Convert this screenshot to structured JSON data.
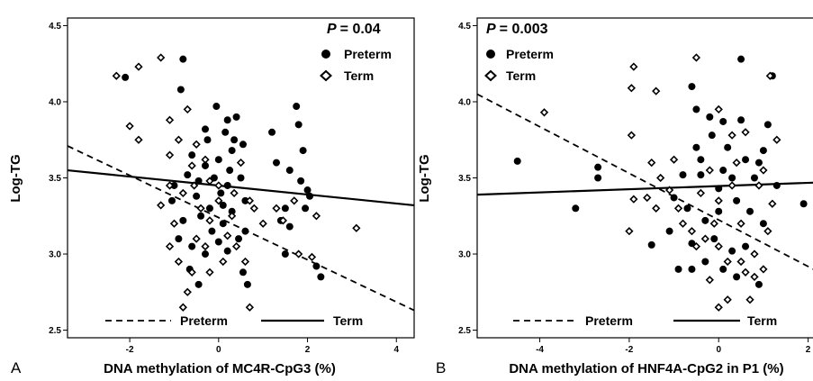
{
  "chart_data": [
    {
      "panel_label": "A",
      "type": "scatter",
      "xlabel": "DNA methylation of MC4R-CpG3 (%)",
      "ylabel": "Log-TG",
      "xlim": [
        -3.4,
        4.4
      ],
      "ylim": [
        2.45,
        4.55
      ],
      "x_ticks": [
        "-2",
        "0",
        "2",
        "4"
      ],
      "x_tick_values": [
        -2,
        0,
        2,
        4
      ],
      "y_ticks": [
        "2.5",
        "3.0",
        "3.5",
        "4.0",
        "4.5"
      ],
      "y_tick_values": [
        2.5,
        3.0,
        3.5,
        4.0,
        4.5
      ],
      "p_label": "P",
      "p_value": "= 0.04",
      "legend_top": "top-right",
      "legend_bottom": "bottom",
      "series": [
        {
          "name": "Preterm",
          "marker": "circle",
          "line": "dashed",
          "fit": [
            [
              -3.4,
              3.71
            ],
            [
              4.4,
              2.63
            ]
          ],
          "points": [
            [
              -2.1,
              4.16
            ],
            [
              -0.8,
              4.28
            ],
            [
              -0.85,
              4.08
            ],
            [
              -0.05,
              3.97
            ],
            [
              0.2,
              3.88
            ],
            [
              0.4,
              3.9
            ],
            [
              0.15,
              3.8
            ],
            [
              0.35,
              3.75
            ],
            [
              -0.3,
              3.82
            ],
            [
              0.55,
              3.72
            ],
            [
              -1.0,
              3.45
            ],
            [
              -1.05,
              3.35
            ],
            [
              -0.7,
              3.52
            ],
            [
              -0.5,
              3.38
            ],
            [
              -0.6,
              3.65
            ],
            [
              -0.3,
              3.58
            ],
            [
              0.0,
              3.62
            ],
            [
              0.3,
              3.68
            ],
            [
              0.5,
              3.5
            ],
            [
              0.2,
              3.45
            ],
            [
              0.05,
              3.4
            ],
            [
              -0.2,
              3.3
            ],
            [
              -0.4,
              3.25
            ],
            [
              0.1,
              3.2
            ],
            [
              0.3,
              3.28
            ],
            [
              0.6,
              3.35
            ],
            [
              -0.8,
              3.22
            ],
            [
              -0.9,
              3.1
            ],
            [
              -0.6,
              3.05
            ],
            [
              -0.3,
              3.0
            ],
            [
              0.0,
              3.08
            ],
            [
              0.2,
              3.02
            ],
            [
              0.45,
              3.1
            ],
            [
              0.6,
              3.15
            ],
            [
              -0.15,
              3.15
            ],
            [
              0.1,
              3.32
            ],
            [
              -0.65,
              2.9
            ],
            [
              -0.45,
              2.8
            ],
            [
              0.55,
              2.88
            ],
            [
              0.65,
              2.8
            ],
            [
              -0.1,
              3.5
            ],
            [
              0.25,
              3.55
            ],
            [
              -0.45,
              3.48
            ],
            [
              1.2,
              3.8
            ],
            [
              1.75,
              3.97
            ],
            [
              1.8,
              3.85
            ],
            [
              1.9,
              3.68
            ],
            [
              1.6,
              3.55
            ],
            [
              1.85,
              3.48
            ],
            [
              2.0,
              3.42
            ],
            [
              2.05,
              3.38
            ],
            [
              1.5,
              3.3
            ],
            [
              1.4,
              3.22
            ],
            [
              1.6,
              3.18
            ],
            [
              1.3,
              3.6
            ],
            [
              1.5,
              3.0
            ],
            [
              2.2,
              2.92
            ],
            [
              2.3,
              2.85
            ],
            [
              1.95,
              3.3
            ],
            [
              -0.25,
              3.75
            ]
          ]
        },
        {
          "name": "Term",
          "marker": "diamond",
          "line": "solid",
          "fit": [
            [
              -3.4,
              3.55
            ],
            [
              4.4,
              3.32
            ]
          ],
          "points": [
            [
              -2.3,
              4.17
            ],
            [
              -1.8,
              4.23
            ],
            [
              -1.3,
              4.29
            ],
            [
              -2.0,
              3.84
            ],
            [
              -1.8,
              3.75
            ],
            [
              -1.1,
              3.45
            ],
            [
              -1.3,
              3.32
            ],
            [
              -0.7,
              3.95
            ],
            [
              -1.1,
              3.88
            ],
            [
              -0.9,
              3.75
            ],
            [
              -1.1,
              3.65
            ],
            [
              -0.6,
              3.58
            ],
            [
              -0.8,
              3.4
            ],
            [
              -1.0,
              3.2
            ],
            [
              -1.1,
              3.05
            ],
            [
              -0.9,
              2.95
            ],
            [
              -0.6,
              2.88
            ],
            [
              -0.7,
              2.75
            ],
            [
              -0.8,
              2.65
            ],
            [
              -0.4,
              3.3
            ],
            [
              -0.2,
              3.22
            ],
            [
              0.0,
              3.35
            ],
            [
              0.2,
              3.12
            ],
            [
              0.4,
              3.05
            ],
            [
              0.6,
              2.95
            ],
            [
              0.7,
              2.65
            ],
            [
              -0.2,
              2.88
            ],
            [
              1.0,
              3.2
            ],
            [
              1.3,
              3.3
            ],
            [
              1.7,
              3.35
            ],
            [
              2.2,
              3.25
            ],
            [
              3.1,
              3.17
            ],
            [
              1.8,
              3.0
            ],
            [
              2.1,
              2.98
            ],
            [
              -0.5,
              3.72
            ],
            [
              -0.3,
              3.62
            ],
            [
              0.0,
              3.45
            ],
            [
              0.35,
              3.4
            ],
            [
              0.7,
              3.35
            ],
            [
              0.8,
              3.3
            ],
            [
              -0.5,
              3.1
            ],
            [
              -0.3,
              3.05
            ],
            [
              0.1,
              2.95
            ],
            [
              -0.2,
              3.48
            ],
            [
              0.5,
              3.6
            ],
            [
              1.45,
              3.22
            ],
            [
              0.3,
              3.25
            ],
            [
              -0.55,
              3.45
            ]
          ]
        }
      ]
    },
    {
      "panel_label": "B",
      "type": "scatter",
      "xlabel": "DNA methylation of HNF4A-CpG2 in P1 (%)",
      "ylabel": "Log-TG",
      "xlim": [
        -5.4,
        2.25
      ],
      "ylim": [
        2.45,
        4.55
      ],
      "x_ticks": [
        "-4",
        "-2",
        "0",
        "2"
      ],
      "x_tick_values": [
        -4,
        -2,
        0,
        2
      ],
      "y_ticks": [
        "2.5",
        "3.0",
        "3.5",
        "4.0",
        "4.5"
      ],
      "y_tick_values": [
        2.5,
        3.0,
        3.5,
        4.0,
        4.5
      ],
      "p_label": "P",
      "p_value": "= 0.003",
      "legend_top": "top-left",
      "legend_bottom": "bottom",
      "series": [
        {
          "name": "Preterm",
          "marker": "circle",
          "line": "dashed",
          "fit": [
            [
              -5.4,
              4.05
            ],
            [
              2.25,
              2.88
            ]
          ],
          "points": [
            [
              -4.5,
              3.61
            ],
            [
              -3.2,
              3.3
            ],
            [
              -2.7,
              3.57
            ],
            [
              -2.7,
              3.5
            ],
            [
              -1.5,
              3.06
            ],
            [
              -0.6,
              4.1
            ],
            [
              0.5,
              4.28
            ],
            [
              1.2,
              4.17
            ],
            [
              -0.5,
              3.95
            ],
            [
              -0.2,
              3.9
            ],
            [
              0.1,
              3.87
            ],
            [
              0.5,
              3.88
            ],
            [
              0.9,
              3.6
            ],
            [
              -0.5,
              3.7
            ],
            [
              -0.8,
              3.52
            ],
            [
              -0.4,
              3.52
            ],
            [
              0.1,
              3.55
            ],
            [
              0.3,
              3.5
            ],
            [
              0.6,
              3.62
            ],
            [
              1.0,
              3.68
            ],
            [
              1.3,
              3.45
            ],
            [
              0.8,
              3.5
            ],
            [
              -1.0,
              3.37
            ],
            [
              -0.7,
              3.3
            ],
            [
              -0.3,
              3.22
            ],
            [
              0.0,
              3.28
            ],
            [
              0.4,
              3.35
            ],
            [
              0.7,
              3.28
            ],
            [
              1.0,
              3.2
            ],
            [
              -1.1,
              3.15
            ],
            [
              -0.6,
              3.07
            ],
            [
              -0.1,
              3.1
            ],
            [
              0.3,
              3.02
            ],
            [
              0.6,
              3.05
            ],
            [
              -0.3,
              2.95
            ],
            [
              -0.6,
              2.9
            ],
            [
              -0.9,
              2.9
            ],
            [
              0.1,
              2.9
            ],
            [
              0.4,
              2.85
            ],
            [
              0.9,
              2.8
            ],
            [
              1.9,
              3.33
            ],
            [
              0.0,
              3.43
            ],
            [
              -0.4,
              3.62
            ],
            [
              0.2,
              3.7
            ],
            [
              1.1,
              3.85
            ],
            [
              -0.15,
              3.78
            ]
          ]
        },
        {
          "name": "Term",
          "marker": "diamond",
          "line": "solid",
          "fit": [
            [
              -5.4,
              3.39
            ],
            [
              2.25,
              3.47
            ]
          ],
          "points": [
            [
              -1.9,
              4.23
            ],
            [
              -1.95,
              4.09
            ],
            [
              -1.4,
              4.07
            ],
            [
              -3.9,
              3.93
            ],
            [
              -1.95,
              3.78
            ],
            [
              -1.0,
              3.62
            ],
            [
              -1.5,
              3.6
            ],
            [
              -1.3,
              3.5
            ],
            [
              -1.1,
              3.42
            ],
            [
              -0.9,
              3.3
            ],
            [
              -1.4,
              3.3
            ],
            [
              -0.8,
              3.2
            ],
            [
              -2.0,
              3.15
            ],
            [
              -1.9,
              3.36
            ],
            [
              -1.6,
              3.37
            ],
            [
              -0.6,
              3.15
            ],
            [
              -0.3,
              3.1
            ],
            [
              -0.5,
              3.05
            ],
            [
              0.0,
              3.05
            ],
            [
              0.2,
              2.95
            ],
            [
              -0.2,
              2.83
            ],
            [
              0.5,
              2.95
            ],
            [
              0.6,
              2.88
            ],
            [
              0.8,
              2.85
            ],
            [
              0.7,
              2.7
            ],
            [
              1.0,
              2.9
            ],
            [
              0.2,
              2.7
            ],
            [
              0.0,
              2.65
            ],
            [
              -0.5,
              4.29
            ],
            [
              0.0,
              3.95
            ],
            [
              0.3,
              3.78
            ],
            [
              0.6,
              3.8
            ],
            [
              1.3,
              3.75
            ],
            [
              0.9,
              3.45
            ],
            [
              1.2,
              3.33
            ],
            [
              0.5,
              3.2
            ],
            [
              1.1,
              3.15
            ],
            [
              -0.4,
              3.4
            ],
            [
              0.0,
              3.35
            ],
            [
              -0.2,
              3.55
            ],
            [
              0.3,
              3.45
            ],
            [
              1.0,
              3.55
            ],
            [
              0.8,
              3.0
            ],
            [
              -0.1,
              3.2
            ],
            [
              0.4,
              3.6
            ],
            [
              1.15,
              4.17
            ]
          ]
        }
      ]
    }
  ]
}
